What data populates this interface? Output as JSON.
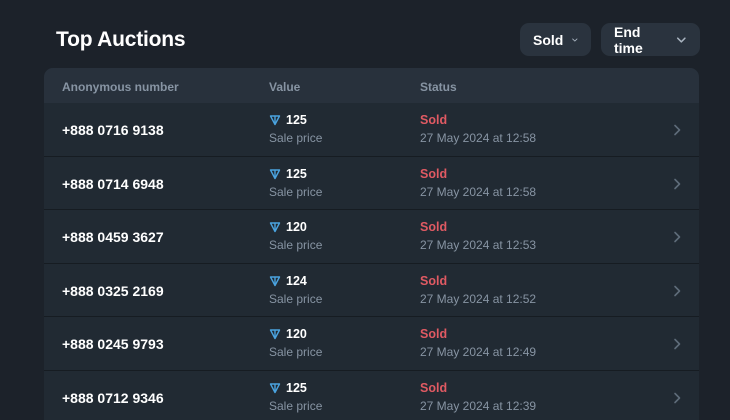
{
  "header": {
    "title": "Top Auctions",
    "filters": [
      {
        "label": "Sold",
        "icon": "chevron-down-icon"
      },
      {
        "label": "End time",
        "icon": "chevron-down-icon"
      }
    ]
  },
  "table": {
    "columns": [
      "Anonymous number",
      "Value",
      "Status"
    ],
    "rows": [
      {
        "number": "+888 0716 9138",
        "value": "125",
        "value_label": "Sale price",
        "status": "Sold",
        "date": "27 May 2024 at 12:58"
      },
      {
        "number": "+888 0714 6948",
        "value": "125",
        "value_label": "Sale price",
        "status": "Sold",
        "date": "27 May 2024 at 12:58"
      },
      {
        "number": "+888 0459 3627",
        "value": "120",
        "value_label": "Sale price",
        "status": "Sold",
        "date": "27 May 2024 at 12:53"
      },
      {
        "number": "+888 0325 2169",
        "value": "124",
        "value_label": "Sale price",
        "status": "Sold",
        "date": "27 May 2024 at 12:52"
      },
      {
        "number": "+888 0245 9793",
        "value": "120",
        "value_label": "Sale price",
        "status": "Sold",
        "date": "27 May 2024 at 12:49"
      },
      {
        "number": "+888 0712 9346",
        "value": "125",
        "value_label": "Sale price",
        "status": "Sold",
        "date": "27 May 2024 at 12:39"
      }
    ]
  },
  "colors": {
    "background": "#1c222a",
    "table_bg": "#212a33",
    "header_bg": "#28313c",
    "status_sold": "#e05a63",
    "muted_text": "#8794a3",
    "ton_blue": "#4aa3df"
  },
  "icons": {
    "currency": "ton-icon",
    "row_arrow": "chevron-right-icon"
  }
}
